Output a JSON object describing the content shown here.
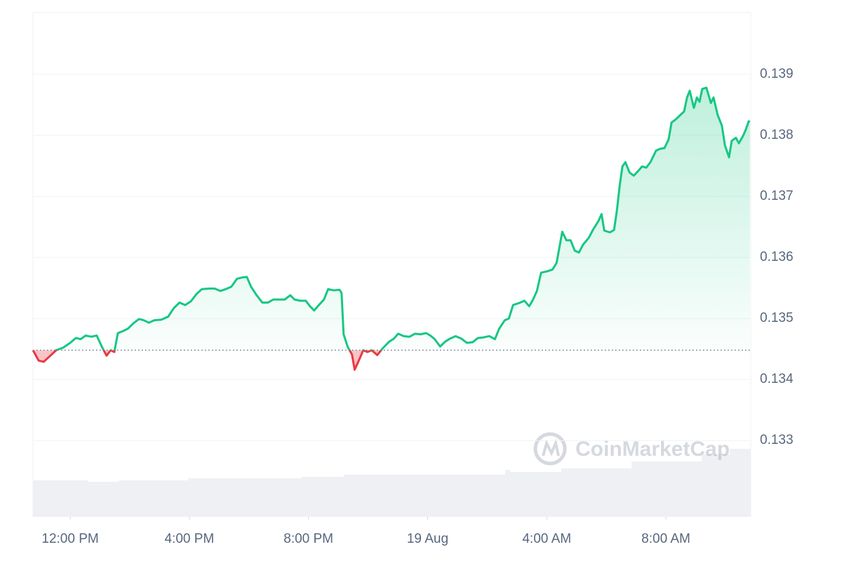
{
  "chart_data": {
    "type": "line",
    "watermark": "CoinMarketCap",
    "x": [
      -1.25,
      -1.06,
      -0.89,
      -0.71,
      -0.47,
      -0.24,
      0,
      0.19,
      0.35,
      0.52,
      0.71,
      0.89,
      1.06,
      1.22,
      1.36,
      1.48,
      1.6,
      1.76,
      1.93,
      2.12,
      2.31,
      2.47,
      2.64,
      2.82,
      3.06,
      3.29,
      3.48,
      3.67,
      3.86,
      4.05,
      4.24,
      4.42,
      4.66,
      4.85,
      5.04,
      5.22,
      5.41,
      5.6,
      5.76,
      5.93,
      6.07,
      6.26,
      6.45,
      6.64,
      6.82,
      7.01,
      7.2,
      7.39,
      7.53,
      7.72,
      7.91,
      8.05,
      8.19,
      8.35,
      8.52,
      8.66,
      8.85,
      9.04,
      9.11,
      9.18,
      9.32,
      9.46,
      9.55,
      9.69,
      9.84,
      9.98,
      10.12,
      10.31,
      10.49,
      10.71,
      10.87,
      11.01,
      11.2,
      11.39,
      11.58,
      11.76,
      11.95,
      12.09,
      12.24,
      12.42,
      12.59,
      12.75,
      12.94,
      13.13,
      13.32,
      13.51,
      13.69,
      13.88,
      14.07,
      14.26,
      14.4,
      14.59,
      14.73,
      14.87,
      15.06,
      15.25,
      15.41,
      15.53,
      15.67,
      15.81,
      16,
      16.19,
      16.33,
      16.42,
      16.52,
      16.66,
      16.8,
      16.94,
      17.08,
      17.22,
      17.41,
      17.55,
      17.74,
      17.84,
      17.93,
      18.12,
      18.26,
      18.35,
      18.45,
      18.54,
      18.64,
      18.78,
      18.92,
      19.06,
      19.2,
      19.34,
      19.48,
      19.67,
      19.81,
      19.95,
      20.09,
      20.19,
      20.33,
      20.52,
      20.61,
      20.71,
      20.8,
      20.94,
      21.04,
      21.13,
      21.22,
      21.36,
      21.51,
      21.6,
      21.74,
      21.88,
      21.98,
      22.12,
      22.21,
      22.35,
      22.45,
      22.59,
      22.68,
      22.78,
      22.82
    ],
    "series": [
      {
        "color": "#16c784",
        "negative_color": "#ea3943",
        "values": [
          0.13448,
          0.13431,
          0.13429,
          0.13437,
          0.13448,
          0.13452,
          0.1346,
          0.13468,
          0.13466,
          0.13472,
          0.1347,
          0.13472,
          0.13454,
          0.13439,
          0.13448,
          0.13445,
          0.13476,
          0.13479,
          0.13483,
          0.13492,
          0.13499,
          0.13497,
          0.13493,
          0.13497,
          0.13498,
          0.13503,
          0.13517,
          0.13526,
          0.13522,
          0.13528,
          0.1354,
          0.13548,
          0.13549,
          0.13549,
          0.13545,
          0.13548,
          0.13552,
          0.13565,
          0.13567,
          0.13568,
          0.13552,
          0.13538,
          0.13526,
          0.13526,
          0.13531,
          0.13531,
          0.13531,
          0.13538,
          0.13531,
          0.13529,
          0.13529,
          0.1352,
          0.13513,
          0.13522,
          0.13531,
          0.13548,
          0.13546,
          0.13547,
          0.13542,
          0.13474,
          0.13453,
          0.13441,
          0.13416,
          0.13431,
          0.13448,
          0.13445,
          0.13448,
          0.1344,
          0.13451,
          0.13462,
          0.13467,
          0.13475,
          0.13471,
          0.1347,
          0.13475,
          0.13474,
          0.13476,
          0.13472,
          0.13466,
          0.13454,
          0.13462,
          0.13467,
          0.13471,
          0.13467,
          0.1346,
          0.13461,
          0.13468,
          0.13469,
          0.13471,
          0.13466,
          0.13483,
          0.13497,
          0.135,
          0.13522,
          0.13525,
          0.13529,
          0.1352,
          0.1353,
          0.13545,
          0.13575,
          0.13577,
          0.1358,
          0.13591,
          0.13615,
          0.13642,
          0.13628,
          0.13628,
          0.13611,
          0.13608,
          0.13621,
          0.13632,
          0.13645,
          0.1366,
          0.13671,
          0.13644,
          0.13641,
          0.13645,
          0.13675,
          0.13718,
          0.13749,
          0.13756,
          0.13739,
          0.13734,
          0.13741,
          0.13749,
          0.13747,
          0.13756,
          0.13775,
          0.13778,
          0.13779,
          0.13793,
          0.13821,
          0.13826,
          0.13835,
          0.13839,
          0.13862,
          0.13873,
          0.13845,
          0.13862,
          0.13855,
          0.13876,
          0.13878,
          0.13853,
          0.13862,
          0.13833,
          0.13816,
          0.13784,
          0.13764,
          0.13791,
          0.13796,
          0.13787,
          0.13799,
          0.13809,
          0.13823,
          0.13822
        ]
      }
    ],
    "baseline": 0.13448,
    "xlim": [
      -1.25,
      22.85
    ],
    "xticks": [
      {
        "value": 0,
        "label": "12:00 PM"
      },
      {
        "value": 4,
        "label": "4:00 PM"
      },
      {
        "value": 8,
        "label": "8:00 PM"
      },
      {
        "value": 12,
        "label": "19 Aug"
      },
      {
        "value": 16,
        "label": "4:00 AM"
      },
      {
        "value": 20,
        "label": "8:00 AM"
      }
    ],
    "ylim": [
      0.13175,
      0.14001
    ],
    "yticks": [
      0.133,
      0.134,
      0.135,
      0.136,
      0.137,
      0.138,
      0.139
    ],
    "grid": true
  }
}
